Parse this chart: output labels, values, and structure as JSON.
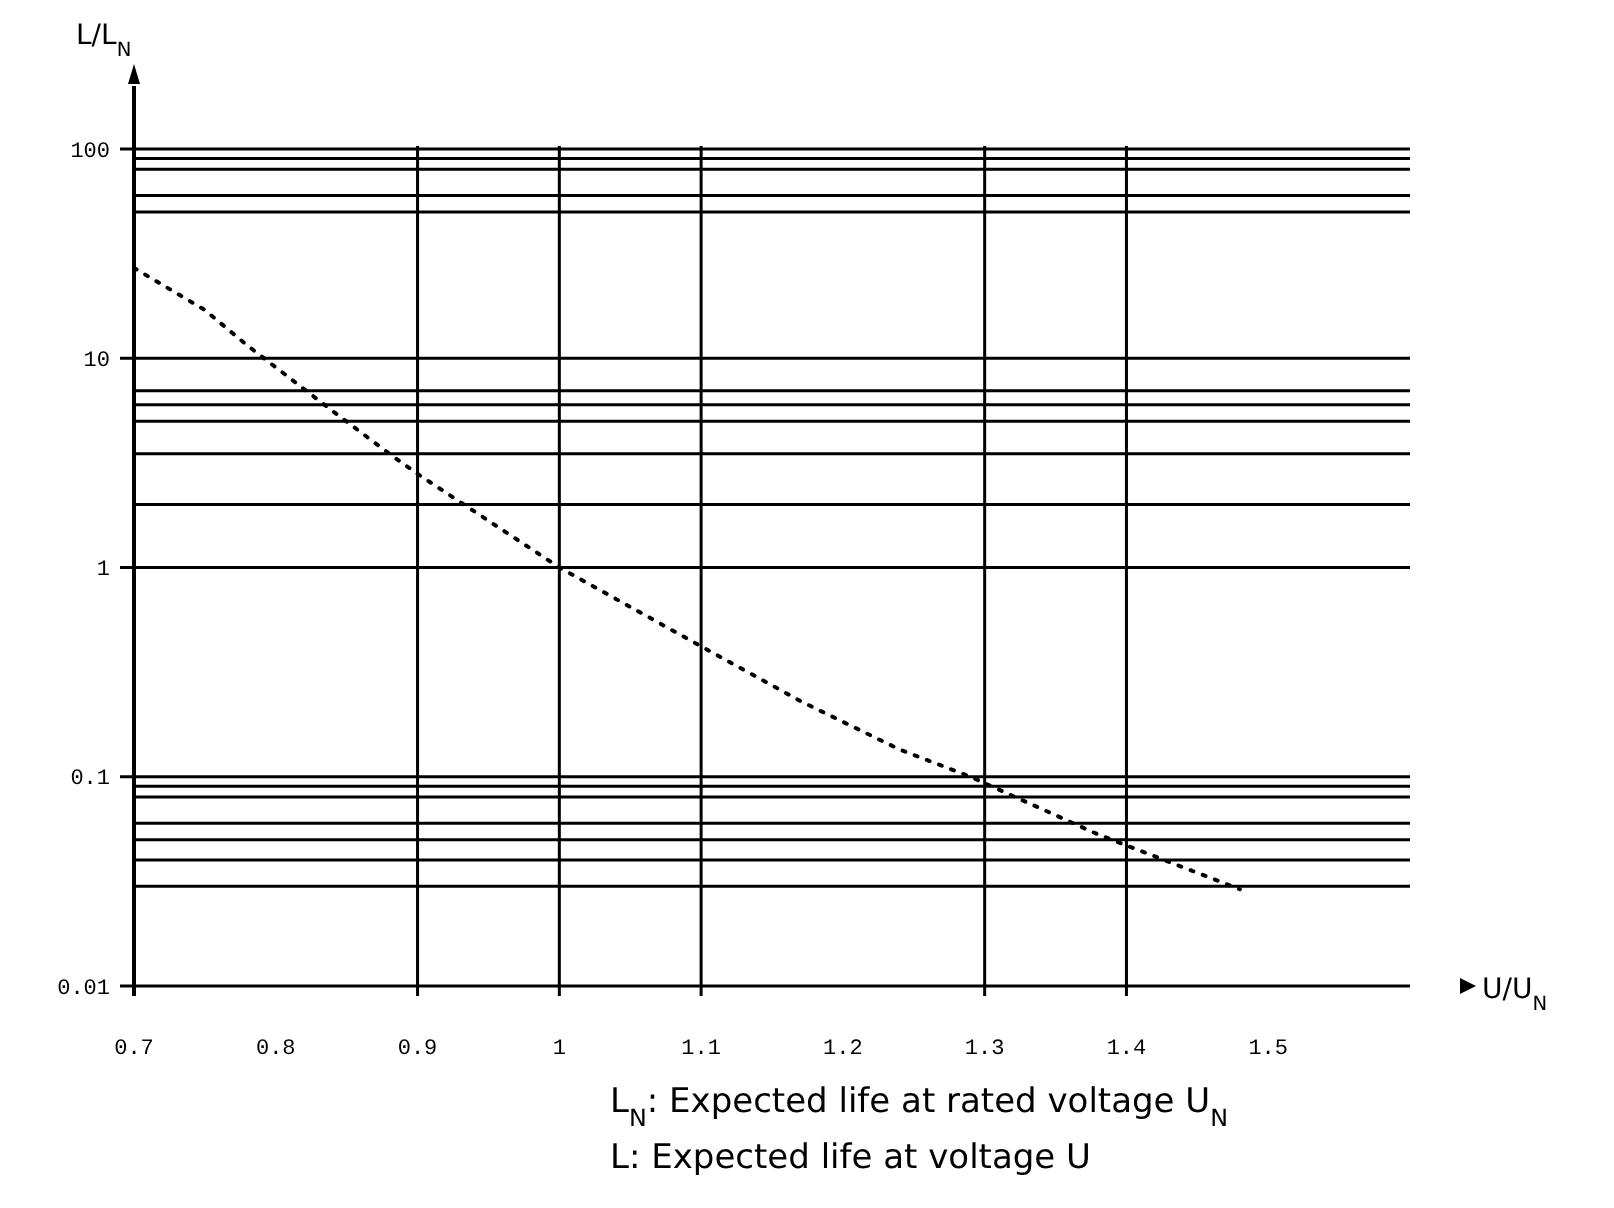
{
  "chart_data": {
    "type": "line",
    "xlabel": "U/U$_{N}$",
    "ylabel": "L/L$_{N}$",
    "annotations": [
      "L$_{N}$: Expected life at rated voltage U$_{N}$",
      "L: Expected life at voltage U"
    ],
    "log": "y",
    "grid": "y",
    "marker": "none",
    "line_style": "dotted",
    "xlim": [
      0.7,
      1.6
    ],
    "xticks": [
      0.7,
      0.8,
      0.9,
      1,
      1.1,
      1.2,
      1.3,
      1.4,
      1.5
    ],
    "ylim": [
      0.01,
      200
    ],
    "yticks": [
      0.01,
      {
        "value": 0.03,
        "label": null
      },
      {
        "value": 0.04,
        "label": null
      },
      {
        "value": 0.05,
        "label": null
      },
      {
        "value": 0.06,
        "label": null
      },
      {
        "value": 0.08,
        "label": null
      },
      {
        "value": 0.09,
        "label": null
      },
      0.1,
      1,
      {
        "value": 2,
        "label": null
      },
      {
        "value": 3.5,
        "label": null
      },
      {
        "value": 5,
        "label": null
      },
      {
        "value": 6,
        "label": null
      },
      {
        "value": 7,
        "label": null
      },
      10,
      {
        "value": 50,
        "label": null
      },
      {
        "value": 60,
        "label": null
      },
      {
        "value": 80,
        "label": null
      },
      {
        "value": 90,
        "label": null
      },
      100
    ],
    "ref_lines": [
      {
        "axis": "x",
        "value": 0.9
      },
      {
        "axis": "x",
        "value": 1
      },
      {
        "axis": "x",
        "value": 1.1
      },
      {
        "axis": "x",
        "value": 1.3
      },
      {
        "axis": "x",
        "value": 1.4
      }
    ],
    "x": [
      0.7,
      0.75,
      0.78,
      0.84,
      0.88,
      0.9,
      1.0,
      1.1,
      1.17,
      1.24,
      1.29,
      1.38,
      1.48
    ],
    "series": [
      {
        "color": "#000000",
        "values": [
          27,
          17,
          11.5,
          5.6,
          3.5,
          2.8,
          1.0,
          0.42,
          0.23,
          0.135,
          0.1,
          0.053,
          0.029
        ]
      }
    ]
  }
}
